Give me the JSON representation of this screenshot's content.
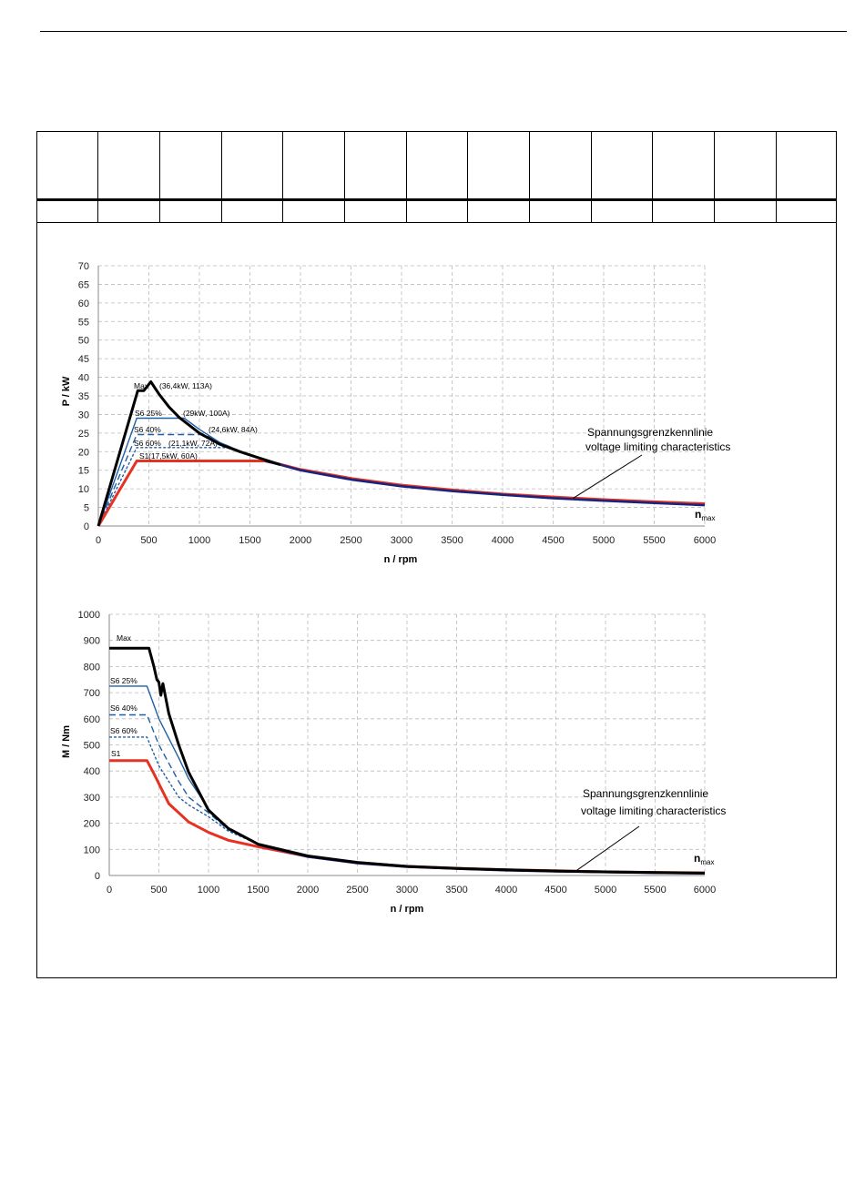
{
  "colors": {
    "max": "#000000",
    "s6_25": "#1f5fa8",
    "s6_40": "#1f5fa8",
    "s6_60": "#1f5fa8",
    "s1": "#e53222",
    "voltage_limit": "#1a237e",
    "grid": "#bbbbbb"
  },
  "chart_data": [
    {
      "type": "line",
      "title": "",
      "xlabel": "n / rpm",
      "ylabel": "P / kW",
      "xlim": [
        0,
        6000
      ],
      "ylim": [
        0,
        70
      ],
      "grid": true,
      "xticks": [
        0,
        500,
        1000,
        1500,
        2000,
        2500,
        3000,
        3500,
        4000,
        4500,
        5000,
        5500,
        6000
      ],
      "yticks": [
        0,
        5,
        10,
        15,
        20,
        25,
        30,
        35,
        40,
        45,
        50,
        55,
        60,
        65,
        70
      ],
      "series": [
        {
          "name": "Max",
          "label_detail": "(36,4kW, 113A)",
          "style": "solid-thick",
          "color_key": "max",
          "x": [
            0,
            390,
            450,
            520,
            600,
            700,
            800,
            1000,
            1200,
            1400,
            1600,
            1800
          ],
          "y": [
            0,
            36.4,
            36.4,
            38.8,
            35.5,
            32,
            29.2,
            25,
            22,
            20,
            18.2,
            16.5
          ]
        },
        {
          "name": "S6 25%",
          "label_detail": "(29kW, 100A)",
          "style": "solid",
          "color_key": "s6_25",
          "x": [
            0,
            380,
            850,
            1000,
            1200,
            1400,
            1600,
            1800
          ],
          "y": [
            0,
            29,
            29,
            26,
            22.5,
            20.2,
            18.3,
            16.6
          ]
        },
        {
          "name": "S6 40%",
          "label_detail": "(24,6kW, 84A)",
          "style": "dashed",
          "color_key": "s6_40",
          "x": [
            0,
            380,
            1050,
            1200,
            1400,
            1600,
            1800
          ],
          "y": [
            0,
            24.6,
            24.6,
            22.5,
            20.2,
            18.3,
            16.6
          ]
        },
        {
          "name": "S6 60%",
          "label_detail": "(21,1kW, 72A)",
          "style": "dotted",
          "color_key": "s6_60",
          "x": [
            0,
            380,
            1300,
            1400,
            1600,
            1800
          ],
          "y": [
            0,
            21.1,
            21.1,
            20.2,
            18.3,
            16.6
          ]
        },
        {
          "name": "S1",
          "label_detail": "(17,5kW, 60A)",
          "style": "solid-thick",
          "color_key": "s1",
          "x": [
            0,
            380,
            1650,
            1800,
            2000,
            2500,
            3000,
            3500,
            4000,
            4500,
            5000,
            5500,
            6000
          ],
          "y": [
            0,
            17.5,
            17.5,
            16.6,
            15.2,
            12.8,
            11,
            9.7,
            8.6,
            7.8,
            7.1,
            6.5,
            6.0
          ]
        },
        {
          "name": "voltage limit",
          "style": "solid-thick",
          "color_key": "voltage_limit",
          "x": [
            1650,
            1800,
            2000,
            2500,
            3000,
            3500,
            4000,
            4500,
            5000,
            5500,
            6000
          ],
          "y": [
            17.5,
            16.5,
            15,
            12.5,
            10.7,
            9.4,
            8.4,
            7.5,
            6.8,
            6.2,
            5.6
          ]
        }
      ],
      "annotation": {
        "line1": "Spannungsgrenzkennlinie",
        "line2": "voltage limiting characteristics",
        "target_x": 4700,
        "target_y": 7.5
      },
      "nmax": {
        "main": "n",
        "sub": "max"
      }
    },
    {
      "type": "line",
      "title": "",
      "xlabel": "n / rpm",
      "ylabel": "M / Nm",
      "xlim": [
        0,
        6000
      ],
      "ylim": [
        0,
        1000
      ],
      "grid": true,
      "xticks": [
        0,
        500,
        1000,
        1500,
        2000,
        2500,
        3000,
        3500,
        4000,
        4500,
        5000,
        5500,
        6000
      ],
      "yticks": [
        0,
        100,
        200,
        300,
        400,
        500,
        600,
        700,
        800,
        900,
        1000
      ],
      "series": [
        {
          "name": "Max",
          "style": "solid-thick",
          "color_key": "max",
          "x": [
            0,
            400,
            450,
            480,
            500,
            520,
            540,
            600,
            700,
            800,
            1000,
            1200,
            1500,
            2000,
            2500,
            3000,
            3500,
            4000,
            4500,
            5000,
            5500,
            6000
          ],
          "y": [
            870,
            870,
            800,
            750,
            740,
            690,
            735,
            620,
            500,
            395,
            250,
            180,
            120,
            75,
            50,
            35,
            27,
            22,
            17,
            14,
            11,
            9
          ]
        },
        {
          "name": "S6 25%",
          "style": "solid",
          "color_key": "s6_25",
          "x": [
            0,
            380,
            500,
            700,
            800,
            1000,
            1200,
            1500
          ],
          "y": [
            725,
            725,
            600,
            450,
            370,
            255,
            180,
            120
          ]
        },
        {
          "name": "S6 40%",
          "style": "dashed",
          "color_key": "s6_40",
          "x": [
            0,
            380,
            500,
            700,
            800,
            1000,
            1200,
            1500
          ],
          "y": [
            615,
            615,
            500,
            360,
            300,
            240,
            175,
            120
          ]
        },
        {
          "name": "S6 60%",
          "style": "dotted",
          "color_key": "s6_60",
          "x": [
            0,
            380,
            500,
            700,
            800,
            1000,
            1200,
            1500
          ],
          "y": [
            530,
            530,
            420,
            300,
            270,
            225,
            170,
            120
          ]
        },
        {
          "name": "S1",
          "style": "solid-thick",
          "color_key": "s1",
          "x": [
            0,
            380,
            450,
            600,
            800,
            1000,
            1200,
            1500,
            2000,
            2500,
            3000,
            3500,
            4000,
            4500,
            5000,
            5500,
            6000
          ],
          "y": [
            440,
            440,
            390,
            275,
            205,
            165,
            135,
            110,
            73,
            49,
            35,
            28,
            22,
            18,
            14,
            12,
            10
          ]
        },
        {
          "name": "voltage limit",
          "style": "solid-thick",
          "color_key": "voltage_limit",
          "x": [
            1500,
            2000,
            2500,
            3000,
            3500,
            4000,
            4500,
            5000,
            5500,
            6000
          ],
          "y": [
            118,
            72,
            47,
            33,
            26,
            20,
            16,
            13,
            10,
            8
          ]
        }
      ],
      "annotation": {
        "line1": "Spannungsgrenzkennlinie",
        "line2": "voltage limiting characteristics",
        "target_x": 4700,
        "target_y": 17
      },
      "nmax": {
        "main": "n",
        "sub": "max"
      }
    }
  ]
}
